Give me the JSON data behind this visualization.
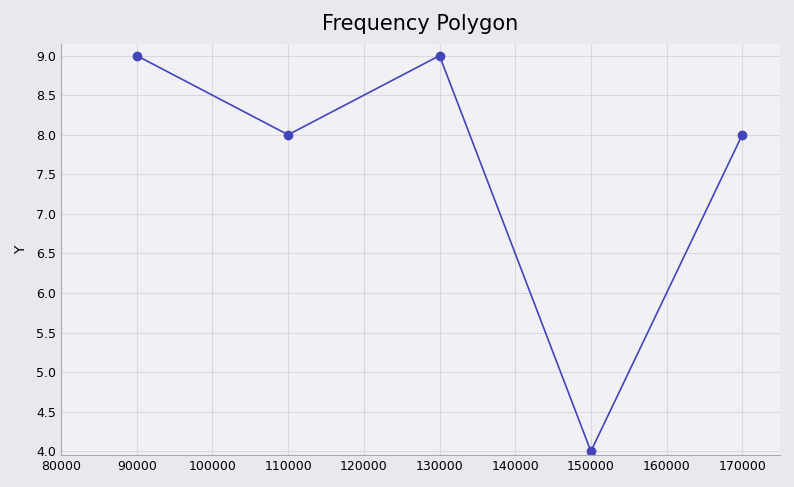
{
  "title": "Frequency Polygon",
  "xlabel": "",
  "ylabel": "Y",
  "x_values": [
    90000,
    110000,
    130000,
    150000,
    170000
  ],
  "y_values": [
    9,
    8,
    9,
    4,
    8
  ],
  "xlim": [
    80000,
    175000
  ],
  "ylim": [
    3.95,
    9.15
  ],
  "xticks": [
    80000,
    90000,
    100000,
    110000,
    120000,
    130000,
    140000,
    150000,
    160000,
    170000
  ],
  "yticks": [
    4.0,
    4.5,
    5.0,
    5.5,
    6.0,
    6.5,
    7.0,
    7.5,
    8.0,
    8.5,
    9.0
  ],
  "line_color": "#4444bb",
  "marker": "o",
  "marker_size": 6,
  "marker_facecolor": "#4444bb",
  "line_width": 1.2,
  "background_color": "#f0f0f5",
  "plot_bg_color": "#f0f0f5",
  "grid_color": "#d8d8e0",
  "title_fontsize": 15,
  "title_fontweight": "normal",
  "axis_label_fontsize": 10,
  "tick_fontsize": 9,
  "fig_bg_color": "#e8e8ee"
}
